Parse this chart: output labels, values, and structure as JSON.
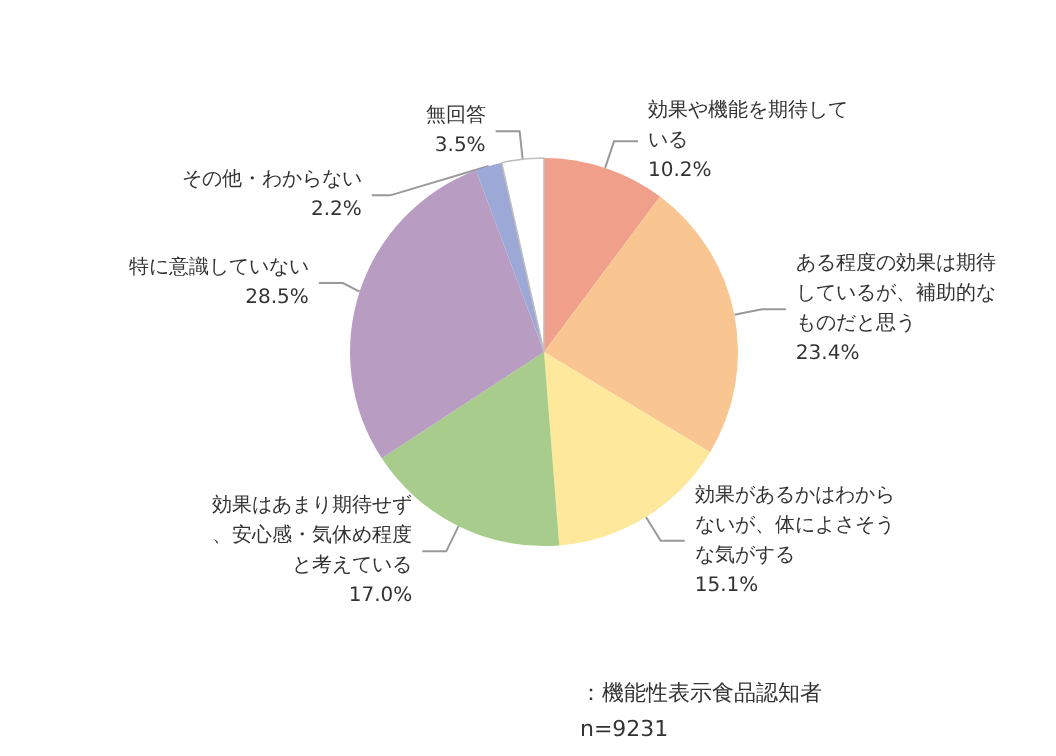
{
  "chart_data": {
    "type": "pie",
    "categories": [
      "効果や機能を期待している",
      "ある程度の効果は期待しているが、補助的なものだと思う",
      "効果があるかはわからないが、体によさそうな気がする",
      "効果はあまり期待せず、安心感・気休め程度と考えている",
      "特に意識していない",
      "その他・わからない",
      "無回答"
    ],
    "values": [
      10.2,
      23.4,
      15.1,
      17.0,
      28.5,
      2.2,
      3.5
    ],
    "value_labels": [
      "10.2%",
      "23.4%",
      "15.1%",
      "17.0%",
      "28.5%",
      "2.2%",
      "3.5%"
    ],
    "colors": [
      "#f0a08a",
      "#f9c692",
      "#fde89c",
      "#a8cc8c",
      "#b89cc2",
      "#9ca8d6",
      "#ffffff"
    ],
    "annotations": [
      "：機能性表示食品認知者",
      "n=9231"
    ],
    "legend": false
  }
}
